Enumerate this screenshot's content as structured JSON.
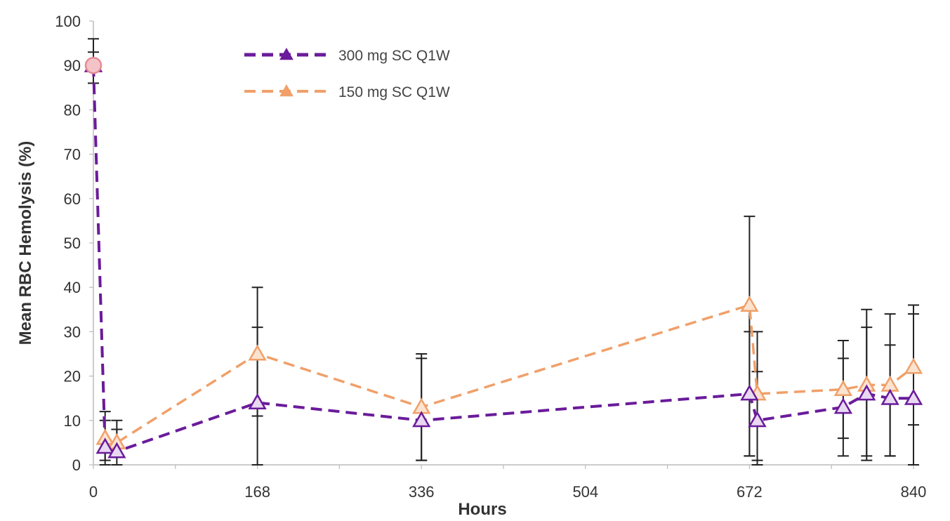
{
  "chart_data": {
    "type": "line",
    "title": "",
    "xlabel": "Hours",
    "ylabel": "Mean RBC Hemolysis (%)",
    "xlim": [
      0,
      840
    ],
    "ylim": [
      0,
      100
    ],
    "xticks": [
      "0",
      "168",
      "336",
      "504",
      "672",
      "840"
    ],
    "yticks": [
      "0",
      "10",
      "20",
      "30",
      "40",
      "50",
      "60",
      "70",
      "80",
      "90",
      "100"
    ],
    "legend_position": "top-left",
    "grid": false,
    "series": [
      {
        "name": "300 mg SC Q1W",
        "color": "#6a1b9a",
        "x": [
          0,
          12,
          24,
          168,
          336,
          672,
          680,
          768,
          792,
          816,
          840
        ],
        "y": [
          90,
          4,
          3,
          14,
          10,
          16,
          10,
          13,
          16,
          15,
          15
        ],
        "err_low": [
          86,
          1,
          0,
          11,
          1,
          2,
          1,
          6,
          2,
          2,
          9
        ],
        "err_high": [
          93,
          10,
          10,
          31,
          24,
          30,
          21,
          24,
          31,
          27,
          34
        ]
      },
      {
        "name": "150 mg SC Q1W",
        "color": "#f0a06a",
        "x": [
          0,
          12,
          24,
          168,
          336,
          672,
          680,
          768,
          792,
          816,
          840
        ],
        "y": [
          90,
          6,
          5,
          25,
          13,
          36,
          16,
          17,
          18,
          18,
          22
        ],
        "err_low": [
          86,
          0,
          2,
          0,
          1,
          2,
          0,
          2,
          1,
          2,
          0
        ],
        "err_high": [
          96,
          12,
          8,
          40,
          25,
          56,
          30,
          28,
          35,
          34,
          36
        ]
      }
    ]
  }
}
